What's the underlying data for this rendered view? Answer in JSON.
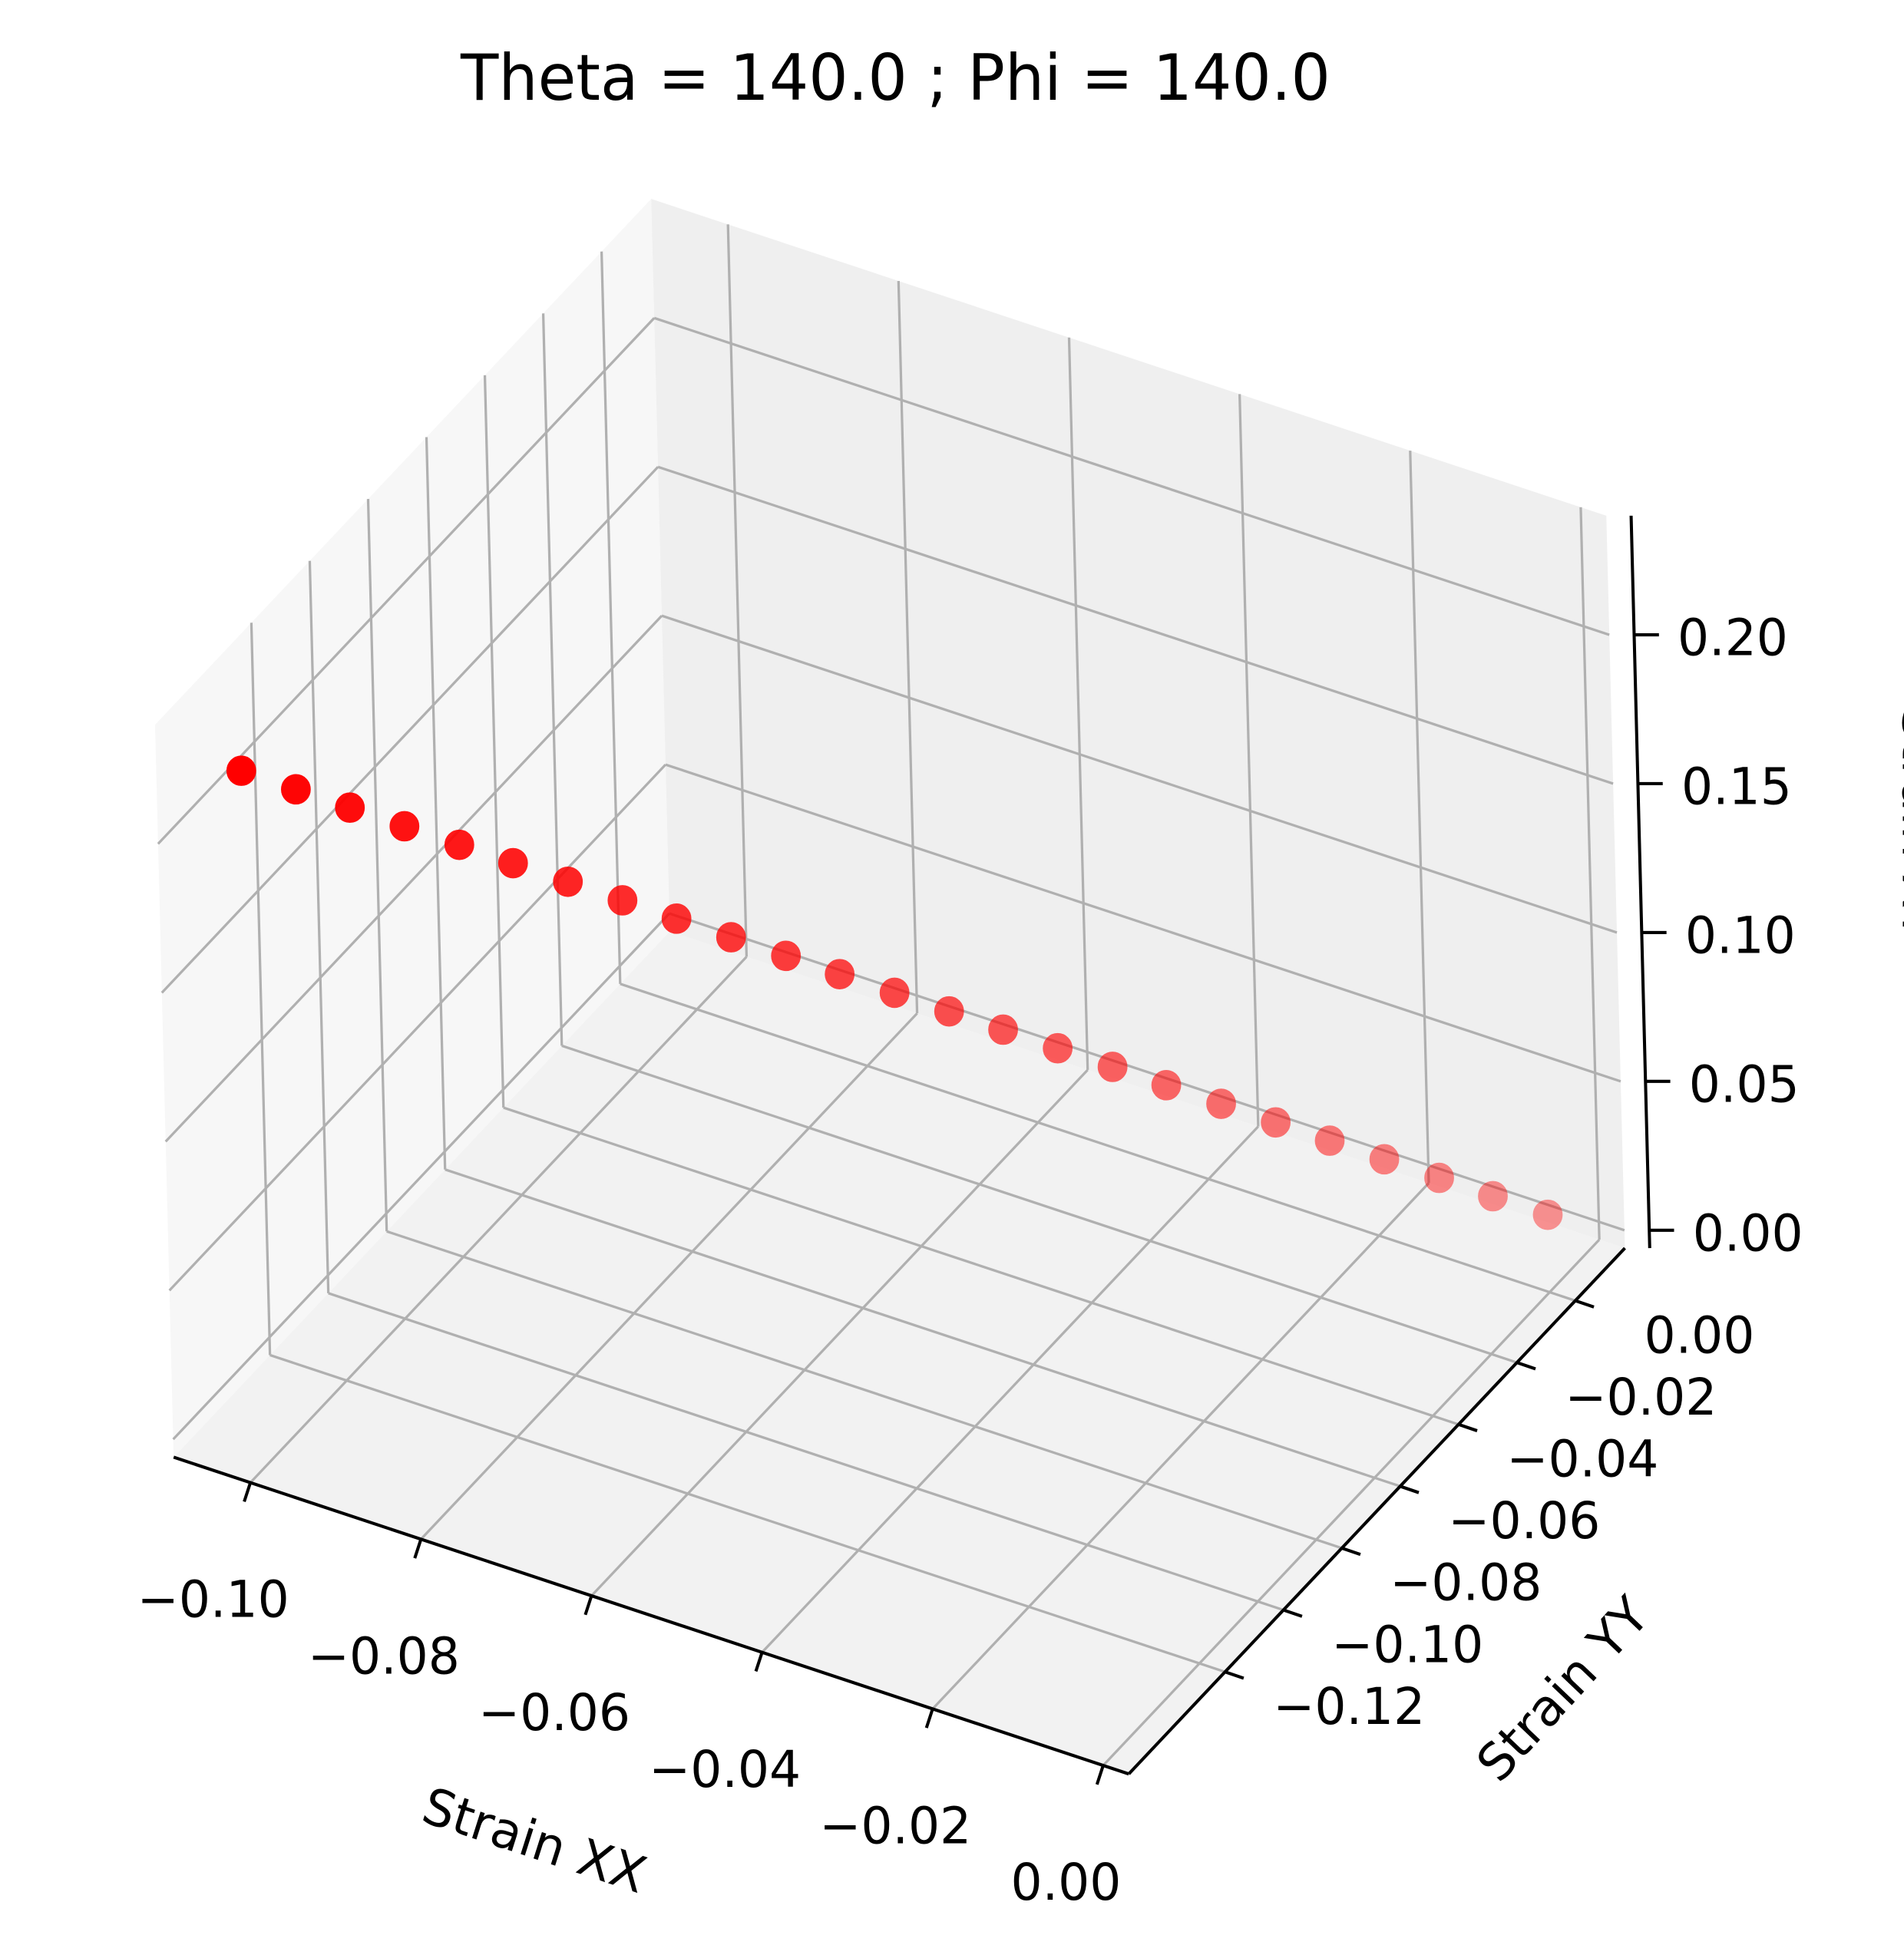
{
  "chart_data": {
    "type": "scatter3d",
    "title": "Theta = 140.0 ; Phi = 140.0",
    "xlabel": "Strain XX",
    "ylabel": "Strain YY",
    "zlabel": "Strain XY",
    "color": "#ff0000",
    "grid": true,
    "x": [
      -0.1,
      -0.0958,
      -0.0917,
      -0.0875,
      -0.0833,
      -0.0792,
      -0.075,
      -0.0708,
      -0.0667,
      -0.0625,
      -0.0583,
      -0.0542,
      -0.05,
      -0.0458,
      -0.0417,
      -0.0375,
      -0.0333,
      -0.0292,
      -0.025,
      -0.0208,
      -0.0167,
      -0.0125,
      -0.0083,
      -0.0042,
      0
    ],
    "y": [
      -0.15,
      -0.1438,
      -0.1375,
      -0.1313,
      -0.125,
      -0.1188,
      -0.1125,
      -0.1063,
      -0.1,
      -0.0938,
      -0.0875,
      -0.0813,
      -0.075,
      -0.0688,
      -0.0625,
      -0.0563,
      -0.05,
      -0.0438,
      -0.0375,
      -0.0313,
      -0.025,
      -0.0188,
      -0.0125,
      -0.0063,
      0
    ],
    "z": [
      0.23,
      0.2213,
      0.2125,
      0.2038,
      0.195,
      0.1863,
      0.1775,
      0.1688,
      0.16,
      0.1513,
      0.1425,
      0.1338,
      0.125,
      0.1163,
      0.1075,
      0.0988,
      0.09,
      0.0813,
      0.0725,
      0.0638,
      0.055,
      0.0463,
      0.0375,
      0.0288,
      0.02
    ],
    "xlim": [
      -0.109,
      0.003
    ],
    "ylim": [
      -0.153,
      0.017
    ],
    "zlim": [
      -0.006,
      0.24
    ],
    "xticks": [
      {
        "value": -0.1,
        "label": "−0.10"
      },
      {
        "value": -0.08,
        "label": "−0.08"
      },
      {
        "value": -0.06,
        "label": "−0.06"
      },
      {
        "value": -0.04,
        "label": "−0.04"
      },
      {
        "value": -0.02,
        "label": "−0.02"
      },
      {
        "value": 0,
        "label": "0.00"
      }
    ],
    "yticks": [
      {
        "value": -0.12,
        "label": "−0.12"
      },
      {
        "value": -0.1,
        "label": "−0.10"
      },
      {
        "value": -0.08,
        "label": "−0.08"
      },
      {
        "value": -0.06,
        "label": "−0.06"
      },
      {
        "value": -0.04,
        "label": "−0.04"
      },
      {
        "value": -0.02,
        "label": "−0.02"
      },
      {
        "value": 0,
        "label": "0.00"
      }
    ],
    "zticks": [
      {
        "value": 0,
        "label": "0.00"
      },
      {
        "value": 0.05,
        "label": "0.05"
      },
      {
        "value": 0.1,
        "label": "0.10"
      },
      {
        "value": 0.15,
        "label": "0.15"
      },
      {
        "value": 0.2,
        "label": "0.20"
      }
    ]
  }
}
